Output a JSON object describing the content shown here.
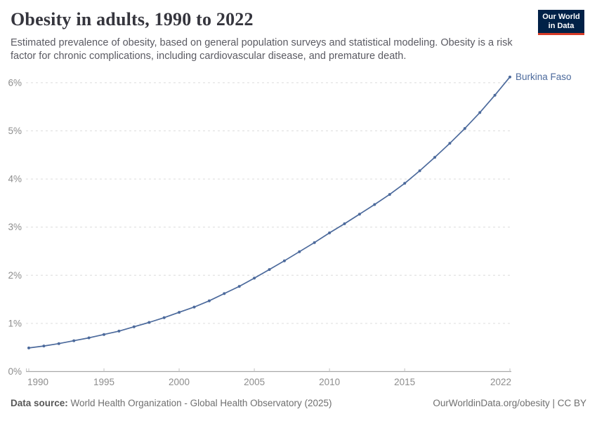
{
  "header": {
    "title": "Obesity in adults, 1990 to 2022",
    "subtitle": "Estimated prevalence of obesity, based on general population surveys and statistical modeling. Obesity is a risk factor for chronic complications, including cardiovascular disease, and premature death.",
    "logo": {
      "line1": "Our World",
      "line2": "in Data"
    }
  },
  "chart_data": {
    "type": "line",
    "title": "Obesity in adults, 1990 to 2022",
    "entity_label": "Burkina Faso",
    "unit": "%",
    "x": [
      1990,
      1991,
      1992,
      1993,
      1994,
      1995,
      1996,
      1997,
      1998,
      1999,
      2000,
      2001,
      2002,
      2003,
      2004,
      2005,
      2006,
      2007,
      2008,
      2009,
      2010,
      2011,
      2012,
      2013,
      2014,
      2015,
      2016,
      2017,
      2018,
      2019,
      2020,
      2021,
      2022
    ],
    "values": [
      0.49,
      0.53,
      0.58,
      0.64,
      0.7,
      0.77,
      0.84,
      0.93,
      1.02,
      1.12,
      1.23,
      1.34,
      1.47,
      1.62,
      1.77,
      1.94,
      2.12,
      2.3,
      2.49,
      2.68,
      2.88,
      3.07,
      3.27,
      3.47,
      3.68,
      3.91,
      4.17,
      4.45,
      4.74,
      5.05,
      5.38,
      5.74,
      6.12
    ],
    "xticks": [
      1990,
      1995,
      2000,
      2005,
      2010,
      2015,
      2022
    ],
    "yticks": [
      0,
      1,
      2,
      3,
      4,
      5,
      6
    ],
    "ytick_suffix": "%",
    "ylim": [
      0,
      6.2
    ],
    "xlim": [
      1990,
      2022
    ],
    "xlabel": "",
    "ylabel": "",
    "grid": "horizontal-dashed",
    "legend_position": "end-of-line-label",
    "line_color": "#4c6a9c",
    "marker": "dot"
  },
  "footer": {
    "source_label": "Data source:",
    "source_text": "World Health Organization - Global Health Observatory (2025)",
    "rights": "OurWorldinData.org/obesity | CC BY"
  },
  "colors": {
    "line": "#4c6a9c",
    "entity_label": "#4c6a9c",
    "gridline": "#dcdcdc",
    "axis_line": "#a8a8a8",
    "tick": "#c2c2c2",
    "axis_text": "#8d8d8d",
    "title_text": "#35353d",
    "subtitle_text": "#5a5a62",
    "logo_bg": "#002147",
    "logo_accent": "#d63a26"
  }
}
